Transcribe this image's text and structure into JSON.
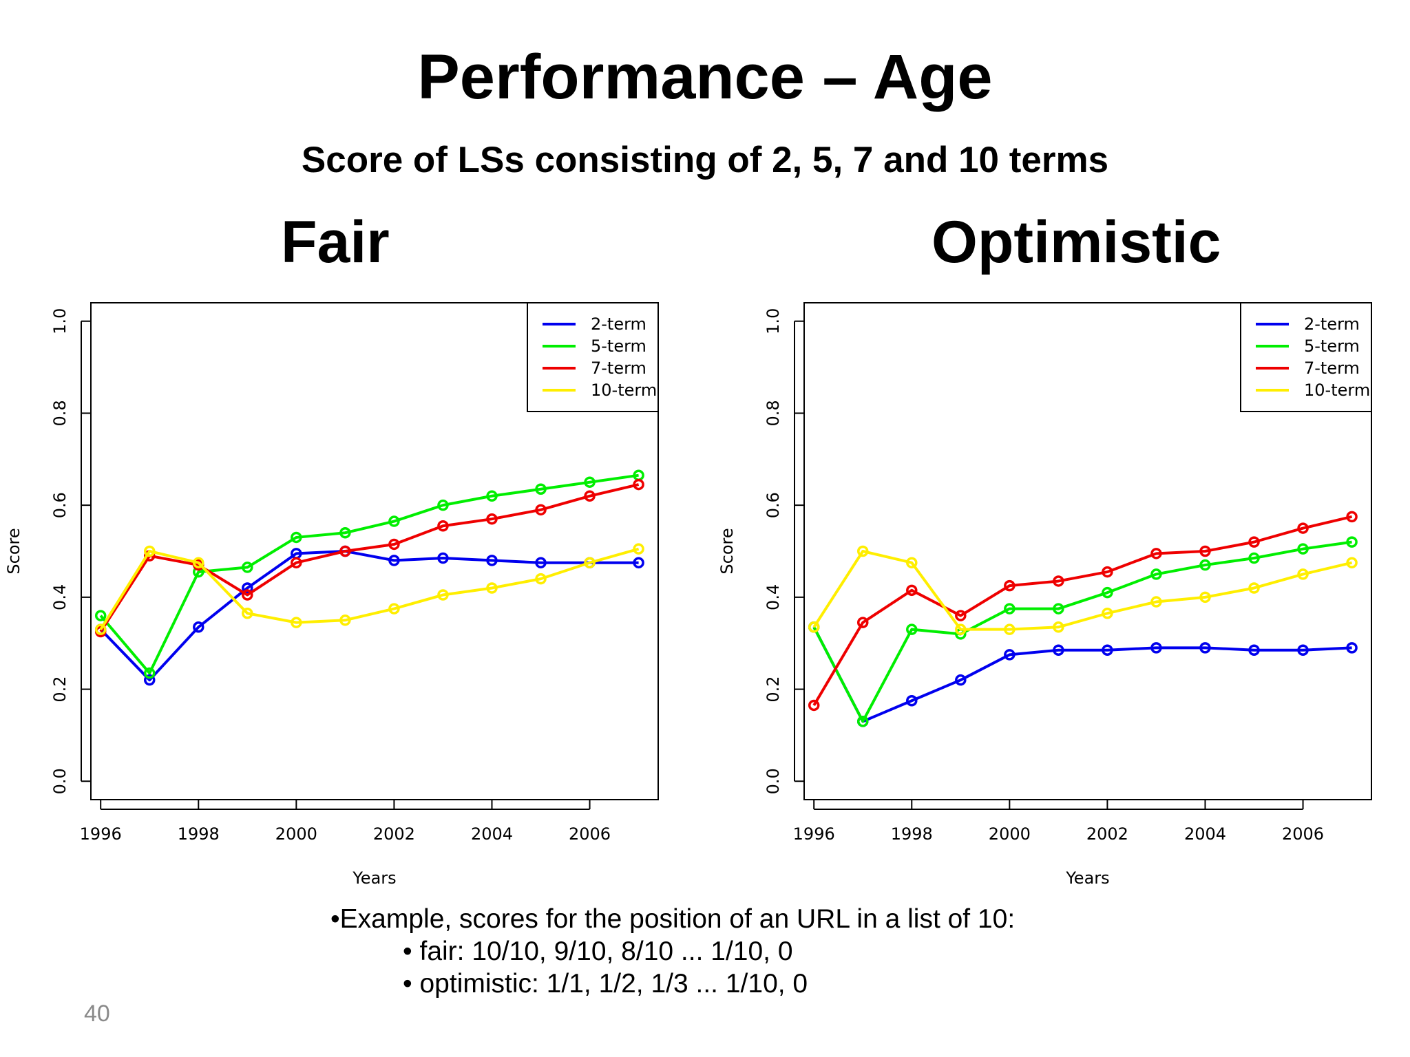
{
  "slide": {
    "title": "Performance – Age",
    "subtitle": "Score of LSs consisting of 2, 5, 7 and 10 terms",
    "notes": {
      "line1": "•Example, scores for the position of an URL in a list of 10:",
      "line2": "• fair: 10/10, 9/10, 8/10 ... 1/10, 0",
      "line3": "• optimistic: 1/1, 1/2, 1/3 ... 1/10, 0"
    },
    "page_number": "40"
  },
  "chart_data": [
    {
      "type": "line",
      "title": "Fair",
      "xlabel": "Years",
      "ylabel": "Score",
      "x": [
        1996,
        1997,
        1998,
        1999,
        2000,
        2001,
        2002,
        2003,
        2004,
        2005,
        2006,
        2007
      ],
      "xlim": [
        1995.8,
        2007.4
      ],
      "ylim": [
        -0.04,
        1.04
      ],
      "xticks": [
        "1996",
        "1998",
        "2000",
        "2002",
        "2004",
        "2006"
      ],
      "yticks": [
        "0.0",
        "0.2",
        "0.4",
        "0.6",
        "0.8",
        "1.0"
      ],
      "legend_position": "top-right",
      "series": [
        {
          "name": "2-term",
          "color": "#0000ee",
          "values": [
            0.33,
            0.22,
            0.335,
            0.42,
            0.495,
            0.5,
            0.48,
            0.485,
            0.48,
            0.475,
            0.475,
            0.475
          ]
        },
        {
          "name": "5-term",
          "color": "#00ee00",
          "values": [
            0.36,
            0.235,
            0.455,
            0.465,
            0.53,
            0.54,
            0.565,
            0.6,
            0.62,
            0.635,
            0.65,
            0.665
          ]
        },
        {
          "name": "7-term",
          "color": "#ee0000",
          "values": [
            0.325,
            0.49,
            0.47,
            0.405,
            0.475,
            0.5,
            0.515,
            0.555,
            0.57,
            0.59,
            0.62,
            0.645
          ]
        },
        {
          "name": "10-term",
          "color": "#ffee00",
          "values": [
            0.33,
            0.5,
            0.475,
            0.365,
            0.345,
            0.35,
            0.375,
            0.405,
            0.42,
            0.44,
            0.475,
            0.505
          ]
        }
      ]
    },
    {
      "type": "line",
      "title": "Optimistic",
      "xlabel": "Years",
      "ylabel": "Score",
      "x": [
        1996,
        1997,
        1998,
        1999,
        2000,
        2001,
        2002,
        2003,
        2004,
        2005,
        2006,
        2007
      ],
      "xlim": [
        1995.8,
        2007.4
      ],
      "ylim": [
        -0.04,
        1.04
      ],
      "xticks": [
        "1996",
        "1998",
        "2000",
        "2002",
        "2004",
        "2006"
      ],
      "yticks": [
        "0.0",
        "0.2",
        "0.4",
        "0.6",
        "0.8",
        "1.0"
      ],
      "legend_position": "top-right",
      "series": [
        {
          "name": "2-term",
          "color": "#0000ee",
          "values": [
            0.335,
            0.13,
            0.175,
            0.22,
            0.275,
            0.285,
            0.285,
            0.29,
            0.29,
            0.285,
            0.285,
            0.29
          ]
        },
        {
          "name": "5-term",
          "color": "#00ee00",
          "values": [
            0.335,
            0.13,
            0.33,
            0.32,
            0.375,
            0.375,
            0.41,
            0.45,
            0.47,
            0.485,
            0.505,
            0.52
          ]
        },
        {
          "name": "7-term",
          "color": "#ee0000",
          "values": [
            0.165,
            0.345,
            0.415,
            0.36,
            0.425,
            0.435,
            0.455,
            0.495,
            0.5,
            0.52,
            0.55,
            0.575
          ]
        },
        {
          "name": "10-term",
          "color": "#ffee00",
          "values": [
            0.335,
            0.5,
            0.475,
            0.33,
            0.33,
            0.335,
            0.365,
            0.39,
            0.4,
            0.42,
            0.45,
            0.475
          ]
        }
      ]
    }
  ]
}
